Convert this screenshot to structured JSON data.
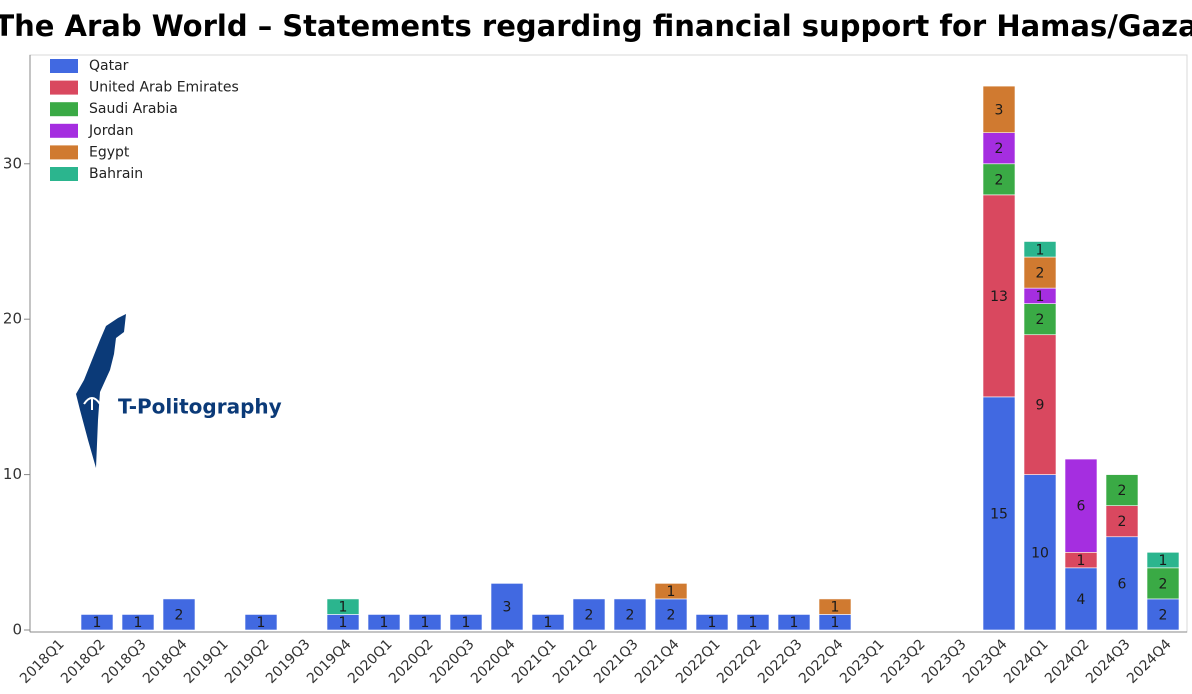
{
  "chart_data": {
    "type": "stacked_bar",
    "title": "The Arab World – Statements regarding financial support for Hamas/Gaza",
    "annotations": [
      "T-Politography"
    ],
    "categories": [
      "2018Q1",
      "2018Q2",
      "2018Q3",
      "2018Q4",
      "2019Q1",
      "2019Q2",
      "2019Q3",
      "2019Q4",
      "2020Q1",
      "2020Q2",
      "2020Q3",
      "2020Q4",
      "2021Q1",
      "2021Q2",
      "2021Q3",
      "2021Q4",
      "2022Q1",
      "2022Q2",
      "2022Q3",
      "2022Q4",
      "2023Q1",
      "2023Q2",
      "2023Q3",
      "2023Q4",
      "2024Q1",
      "2024Q2",
      "2024Q3",
      "2024Q4"
    ],
    "series": [
      {
        "name": "Qatar",
        "color": "#4169e1",
        "values": [
          null,
          1,
          1,
          2,
          null,
          1,
          null,
          1,
          1,
          1,
          1,
          3,
          1,
          2,
          2,
          2,
          1,
          1,
          1,
          1,
          null,
          null,
          null,
          15,
          10,
          4,
          6,
          2
        ]
      },
      {
        "name": "United Arab Emirates",
        "color": "#d9485f",
        "values": [
          null,
          null,
          null,
          null,
          null,
          null,
          null,
          null,
          null,
          null,
          null,
          null,
          null,
          null,
          null,
          null,
          null,
          null,
          null,
          null,
          null,
          null,
          null,
          13,
          9,
          1,
          2,
          null
        ]
      },
      {
        "name": "Saudi Arabia",
        "color": "#3aaa45",
        "values": [
          null,
          null,
          null,
          null,
          null,
          null,
          null,
          null,
          null,
          null,
          null,
          null,
          null,
          null,
          null,
          null,
          null,
          null,
          null,
          null,
          null,
          null,
          null,
          2,
          2,
          null,
          2,
          2
        ]
      },
      {
        "name": "Jordan",
        "color": "#a52ee0",
        "values": [
          null,
          null,
          null,
          null,
          null,
          null,
          null,
          null,
          null,
          null,
          null,
          null,
          null,
          null,
          null,
          null,
          null,
          null,
          null,
          null,
          null,
          null,
          null,
          2,
          1,
          6,
          null,
          null
        ]
      },
      {
        "name": "Egypt",
        "color": "#d07a30",
        "values": [
          null,
          null,
          null,
          null,
          null,
          null,
          null,
          null,
          null,
          null,
          null,
          null,
          null,
          null,
          null,
          1,
          null,
          null,
          null,
          1,
          null,
          null,
          null,
          3,
          2,
          null,
          null,
          null
        ]
      },
      {
        "name": "Bahrain",
        "color": "#2bb58e",
        "values": [
          null,
          null,
          null,
          null,
          null,
          null,
          null,
          1,
          null,
          null,
          null,
          null,
          null,
          null,
          null,
          null,
          null,
          null,
          null,
          null,
          null,
          null,
          null,
          null,
          1,
          null,
          null,
          1
        ]
      }
    ],
    "ylim": [
      0,
      37
    ],
    "yticks": [
      0,
      10,
      20,
      30
    ],
    "legend": "top-left"
  }
}
